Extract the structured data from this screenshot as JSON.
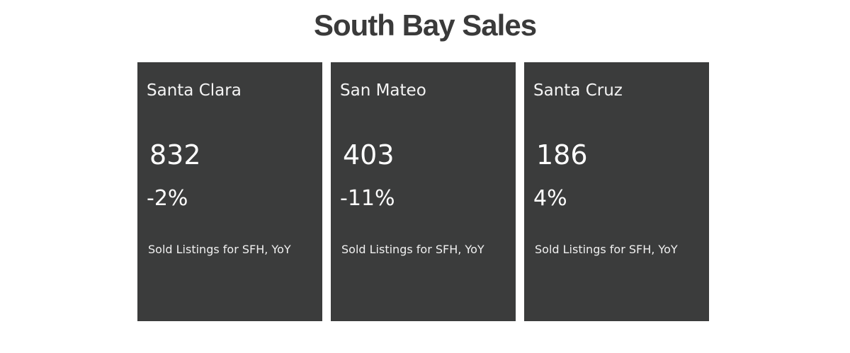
{
  "title": "South Bay Sales",
  "cards": [
    {
      "name": "Santa Clara",
      "count": "832",
      "change": "-2%",
      "caption": "Sold Listings for SFH, YoY"
    },
    {
      "name": "San Mateo",
      "count": "403",
      "change": "-11%",
      "caption": "Sold Listings for SFH, YoY"
    },
    {
      "name": "Santa Cruz",
      "count": "186",
      "change": "4%",
      "caption": "Sold Listings for SFH, YoY"
    }
  ],
  "colors": {
    "card_background": "#3b3c3c",
    "title_text": "#3a3a3a",
    "card_text": "#ffffff"
  }
}
